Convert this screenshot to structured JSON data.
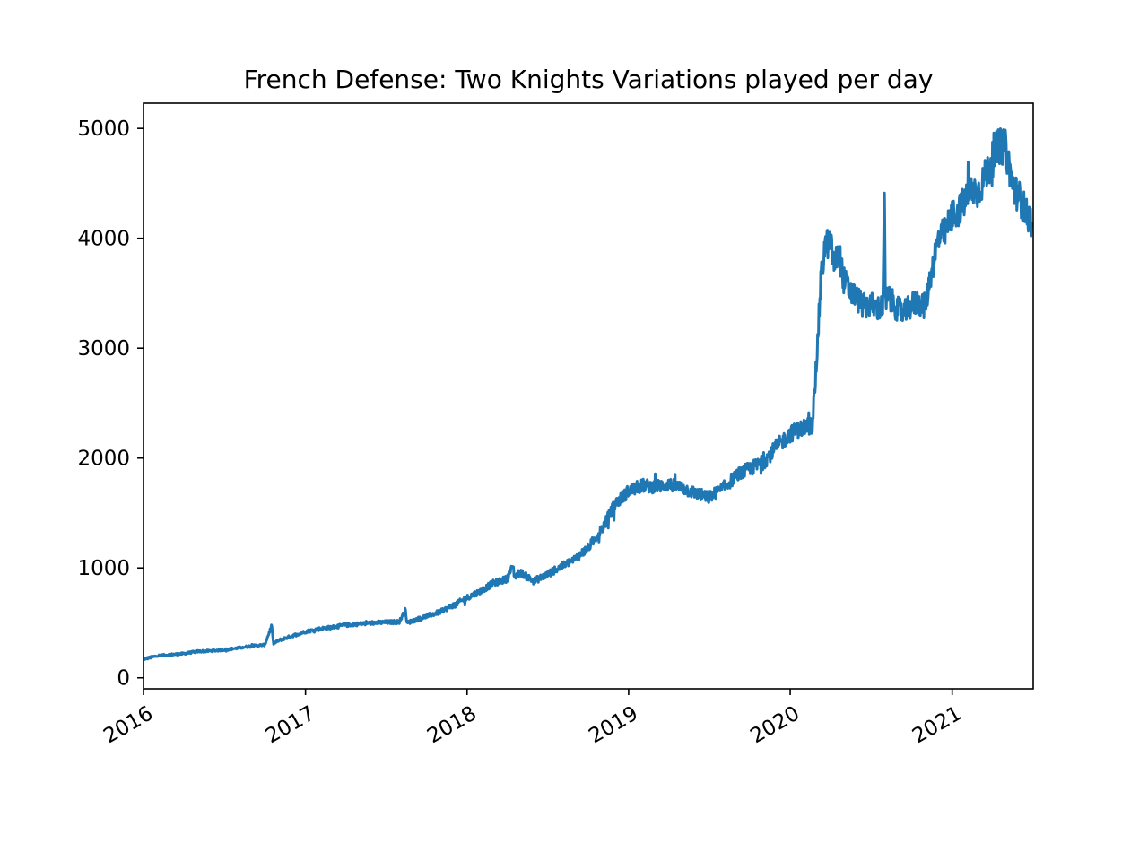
{
  "chart_data": {
    "type": "line",
    "title": "French Defense: Two Knights Variations played per day",
    "xlabel": "",
    "ylabel": "",
    "x_axis": "date",
    "xlim": [
      "2016-01-01",
      "2021-07-03"
    ],
    "ylim": [
      -100,
      5230
    ],
    "x_ticks": [
      {
        "value": "2016-01-01",
        "label": "2016"
      },
      {
        "value": "2017-01-01",
        "label": "2017"
      },
      {
        "value": "2018-01-01",
        "label": "2018"
      },
      {
        "value": "2019-01-01",
        "label": "2019"
      },
      {
        "value": "2020-01-01",
        "label": "2020"
      },
      {
        "value": "2021-01-01",
        "label": "2021"
      }
    ],
    "y_ticks": [
      {
        "value": 0,
        "label": "0"
      },
      {
        "value": 1000,
        "label": "1000"
      },
      {
        "value": 2000,
        "label": "2000"
      },
      {
        "value": 3000,
        "label": "3000"
      },
      {
        "value": 4000,
        "label": "4000"
      },
      {
        "value": 5000,
        "label": "5000"
      }
    ],
    "grid": false,
    "line_color": "#1f77b4",
    "series": [
      {
        "x": [
          "2016-01-01",
          "2016-02-01",
          "2016-03-01",
          "2016-04-01",
          "2016-05-01",
          "2016-06-01",
          "2016-07-01",
          "2016-08-01",
          "2016-09-01",
          "2016-10-01",
          "2016-10-17",
          "2016-10-20",
          "2016-11-01",
          "2016-12-01",
          "2017-01-01",
          "2017-02-01",
          "2017-03-01",
          "2017-04-01",
          "2017-05-01",
          "2017-06-01",
          "2017-07-01",
          "2017-08-01",
          "2017-08-15",
          "2017-08-18",
          "2017-09-01",
          "2017-10-01",
          "2017-11-01",
          "2017-12-01",
          "2018-01-01",
          "2018-02-01",
          "2018-03-01",
          "2018-04-01",
          "2018-04-15",
          "2018-04-18",
          "2018-05-01",
          "2018-06-01",
          "2018-07-01",
          "2018-08-01",
          "2018-09-01",
          "2018-10-01",
          "2018-11-01",
          "2018-12-01",
          "2019-01-01",
          "2019-02-01",
          "2019-03-01",
          "2019-04-01",
          "2019-05-01",
          "2019-06-01",
          "2019-07-01",
          "2019-08-01",
          "2019-09-01",
          "2019-10-01",
          "2019-11-01",
          "2019-12-01",
          "2020-01-01",
          "2020-02-01",
          "2020-02-20",
          "2020-03-01",
          "2020-03-10",
          "2020-03-20",
          "2020-04-01",
          "2020-04-10",
          "2020-04-20",
          "2020-05-01",
          "2020-05-15",
          "2020-06-01",
          "2020-06-15",
          "2020-07-01",
          "2020-07-15",
          "2020-07-28",
          "2020-08-01",
          "2020-08-03",
          "2020-08-10",
          "2020-09-01",
          "2020-09-15",
          "2020-10-01",
          "2020-10-15",
          "2020-11-01",
          "2020-11-15",
          "2020-12-01",
          "2020-12-15",
          "2021-01-01",
          "2021-01-15",
          "2021-02-01",
          "2021-02-15",
          "2021-03-01",
          "2021-03-15",
          "2021-04-01",
          "2021-04-10",
          "2021-04-20",
          "2021-05-01",
          "2021-05-10",
          "2021-05-20",
          "2021-06-01",
          "2021-06-10",
          "2021-06-20",
          "2021-06-30"
        ],
        "y": [
          170,
          200,
          210,
          220,
          240,
          245,
          255,
          270,
          290,
          300,
          480,
          310,
          340,
          380,
          420,
          445,
          460,
          480,
          490,
          500,
          505,
          510,
          620,
          500,
          520,
          560,
          600,
          660,
          730,
          790,
          860,
          900,
          1020,
          920,
          960,
          880,
          940,
          1010,
          1080,
          1180,
          1350,
          1580,
          1700,
          1750,
          1740,
          1760,
          1730,
          1680,
          1640,
          1720,
          1840,
          1900,
          1960,
          2100,
          2220,
          2280,
          2300,
          2900,
          3600,
          3950,
          3950,
          3750,
          3880,
          3620,
          3520,
          3450,
          3380,
          3400,
          3360,
          3380,
          4400,
          3420,
          3460,
          3350,
          3320,
          3390,
          3420,
          3380,
          3700,
          4000,
          4050,
          4200,
          4250,
          4350,
          4450,
          4420,
          4550,
          4700,
          4800,
          4850,
          4820,
          4650,
          4450,
          4380,
          4300,
          4200,
          4150
        ]
      }
    ]
  }
}
